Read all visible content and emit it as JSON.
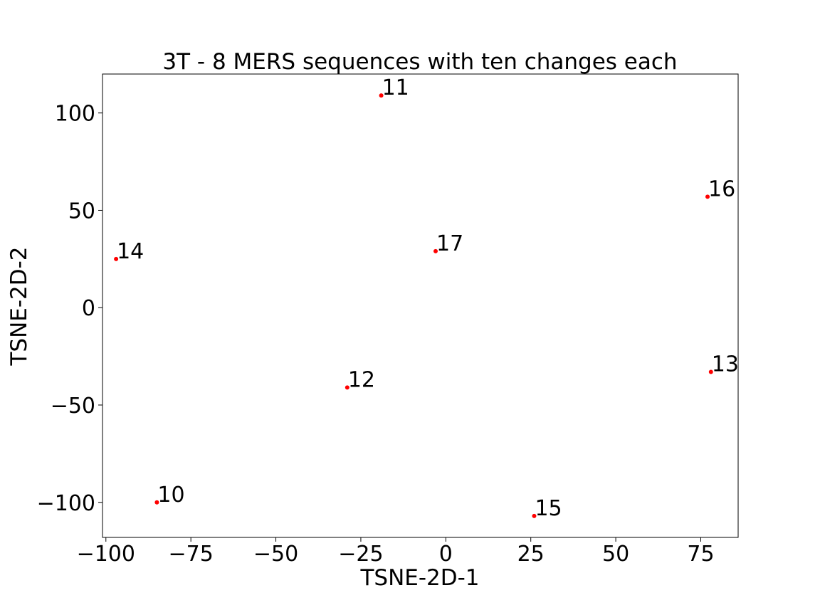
{
  "chart_data": {
    "type": "scatter",
    "title": "3T - 8 MERS sequences with ten changes each",
    "xlabel": "TSNE-2D-1",
    "ylabel": "TSNE-2D-2",
    "xlim": [
      -101,
      86
    ],
    "ylim": [
      -118,
      120
    ],
    "xticks": [
      -100,
      -75,
      -50,
      -25,
      0,
      25,
      50,
      75
    ],
    "xtick_labels": [
      "−100",
      "−75",
      "−50",
      "−25",
      "0",
      "25",
      "50",
      "75"
    ],
    "yticks": [
      100,
      50,
      0,
      -50,
      -100
    ],
    "ytick_labels": [
      "100",
      "50",
      "0",
      "−50",
      "−100"
    ],
    "grid": false,
    "marker_color": "#ff0000",
    "points": [
      {
        "label": "11",
        "x": -19,
        "y": 109
      },
      {
        "label": "16",
        "x": 77,
        "y": 57
      },
      {
        "label": "14",
        "x": -97,
        "y": 25
      },
      {
        "label": "17",
        "x": -3,
        "y": 29
      },
      {
        "label": "12",
        "x": -29,
        "y": -41
      },
      {
        "label": "13",
        "x": 78,
        "y": -33
      },
      {
        "label": "10",
        "x": -85,
        "y": -100
      },
      {
        "label": "15",
        "x": 26,
        "y": -107
      }
    ]
  }
}
